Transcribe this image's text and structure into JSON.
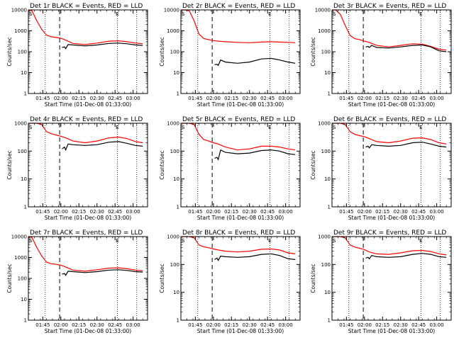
{
  "chart_data": [
    {
      "type": "line",
      "title": "Det 1r BLACK = Events, RED = LLD",
      "xlabel": "Start Time (01-Dec-08 01:33:00)",
      "ylabel": "Counts/sec",
      "yscale": "log",
      "ylim": [
        1,
        10000
      ],
      "xlim": [
        "01:33",
        "03:12"
      ],
      "xticks": [
        "01:45",
        "02:00",
        "02:15",
        "02:30",
        "02:45",
        "03:00"
      ],
      "yticks": [
        "1",
        "10",
        "100",
        "1000",
        "10000"
      ],
      "markers": {
        "S_at": "01:33",
        "E_at": "02:45",
        "dotted_lines": [
          "01:47",
          "02:47",
          "03:03"
        ],
        "dashed_line": "01:59"
      },
      "series": [
        {
          "color": "#ff0000",
          "x": [
            "01:33",
            "01:36",
            "01:40",
            "01:44",
            "01:48",
            "01:52",
            "01:56",
            "02:00",
            "02:04",
            "02:10",
            "02:20",
            "02:30",
            "02:40",
            "02:48",
            "02:55",
            "03:02",
            "03:08"
          ],
          "values": [
            10000,
            9000,
            3000,
            1200,
            620,
            520,
            480,
            440,
            360,
            250,
            220,
            260,
            320,
            330,
            300,
            260,
            240
          ]
        },
        {
          "color": "#000000",
          "x": [
            "02:01",
            "02:03",
            "02:04",
            "02:06",
            "02:10",
            "02:20",
            "02:30",
            "02:40",
            "02:48",
            "02:55",
            "03:02",
            "03:08"
          ],
          "values": [
            160,
            170,
            140,
            220,
            210,
            190,
            210,
            250,
            260,
            240,
            210,
            200
          ]
        }
      ]
    },
    {
      "type": "line",
      "title": "Det 2r BLACK = Events, RED = LLD",
      "xlabel": "Start Time (01-Dec-08 01:33:00)",
      "ylabel": "Counts/sec",
      "yscale": "log",
      "ylim": [
        1,
        10000
      ],
      "xlim": [
        "01:33",
        "03:12"
      ],
      "xticks": [
        "01:45",
        "02:00",
        "02:15",
        "02:30",
        "02:45",
        "03:00"
      ],
      "yticks": [
        "1",
        "10",
        "100",
        "1000",
        "10000"
      ],
      "markers": {
        "S_at": "01:33",
        "E_at": "02:45",
        "dotted_lines": [
          "01:47",
          "02:47",
          "03:03"
        ],
        "dashed_line": "01:59"
      },
      "series": [
        {
          "color": "#ff0000",
          "x": [
            "01:33",
            "01:36",
            "01:40",
            "01:44",
            "01:48",
            "01:52",
            "01:56",
            "02:00",
            "02:04",
            "02:10",
            "02:20",
            "02:30",
            "02:40",
            "02:48",
            "02:55",
            "03:02",
            "03:08"
          ],
          "values": [
            10000,
            10000,
            9000,
            3000,
            700,
            430,
            380,
            340,
            320,
            300,
            280,
            270,
            290,
            300,
            290,
            280,
            270
          ]
        },
        {
          "color": "#000000",
          "x": [
            "02:01",
            "02:03",
            "02:04",
            "02:06",
            "02:10",
            "02:20",
            "02:30",
            "02:40",
            "02:48",
            "02:55",
            "03:02",
            "03:08"
          ],
          "values": [
            24,
            25,
            22,
            40,
            32,
            28,
            32,
            45,
            48,
            40,
            32,
            28
          ]
        }
      ]
    },
    {
      "type": "line",
      "title": "Det 3r BLACK = Events, RED = LLD",
      "xlabel": "Start Time (01-Dec-08 01:33:00)",
      "ylabel": "Counts/sec",
      "yscale": "log",
      "ylim": [
        1,
        10000
      ],
      "xlim": [
        "01:33",
        "03:12"
      ],
      "xticks": [
        "01:45",
        "02:00",
        "02:15",
        "02:30",
        "02:45",
        "03:00"
      ],
      "yticks": [
        "1",
        "10",
        "100",
        "1000",
        "10000"
      ],
      "markers": {
        "S_at": "01:33",
        "E_at": "02:45",
        "dotted_lines": [
          "01:47",
          "02:47",
          "03:03"
        ],
        "dashed_line": "01:59"
      },
      "series": [
        {
          "color": "#ff0000",
          "x": [
            "01:33",
            "01:36",
            "01:40",
            "01:44",
            "01:48",
            "01:52",
            "01:56",
            "02:00",
            "02:04",
            "02:10",
            "02:20",
            "02:30",
            "02:40",
            "02:48",
            "02:55",
            "03:02",
            "03:08"
          ],
          "values": [
            10000,
            10000,
            6000,
            1800,
            600,
            420,
            380,
            320,
            280,
            200,
            170,
            200,
            240,
            230,
            180,
            130,
            120
          ]
        },
        {
          "color": "#000000",
          "x": [
            "02:01",
            "02:03",
            "02:04",
            "02:06",
            "02:10",
            "02:20",
            "02:30",
            "02:40",
            "02:48",
            "02:55",
            "03:02",
            "03:08"
          ],
          "values": [
            170,
            180,
            160,
            200,
            160,
            150,
            170,
            200,
            210,
            170,
            110,
            100
          ]
        }
      ]
    },
    {
      "type": "line",
      "title": "Det 4r BLACK = Events, RED = LLD",
      "xlabel": "Start Time (01-Dec-08 01:33:00)",
      "ylabel": "Counts/sec",
      "yscale": "log",
      "ylim": [
        1,
        1000
      ],
      "xlim": [
        "01:33",
        "03:12"
      ],
      "xticks": [
        "01:45",
        "02:00",
        "02:15",
        "02:30",
        "02:45",
        "03:00"
      ],
      "yticks": [
        "1",
        "10",
        "100",
        "1000"
      ],
      "markers": {
        "S_at": "01:33",
        "E_at": "02:45",
        "dotted_lines": [
          "01:47",
          "02:47",
          "03:03"
        ],
        "dashed_line": "01:59"
      },
      "series": [
        {
          "color": "#ff0000",
          "x": [
            "01:33",
            "01:36",
            "01:40",
            "01:44",
            "01:48",
            "01:52",
            "01:56",
            "02:00",
            "02:04",
            "02:10",
            "02:20",
            "02:30",
            "02:40",
            "02:48",
            "02:55",
            "03:02",
            "03:08"
          ],
          "values": [
            1000,
            1000,
            1000,
            900,
            500,
            420,
            380,
            340,
            300,
            230,
            200,
            230,
            300,
            320,
            280,
            220,
            200
          ]
        },
        {
          "color": "#000000",
          "x": [
            "02:01",
            "02:03",
            "02:04",
            "02:06",
            "02:10",
            "02:20",
            "02:30",
            "02:40",
            "02:48",
            "02:55",
            "03:02",
            "03:08"
          ],
          "values": [
            120,
            140,
            110,
            180,
            170,
            160,
            170,
            210,
            220,
            190,
            160,
            150
          ]
        }
      ]
    },
    {
      "type": "line",
      "title": "Det 5r BLACK = Events, RED = LLD",
      "xlabel": "Start Time (01-Dec-08 01:33:00)",
      "ylabel": "Counts/sec",
      "yscale": "log",
      "ylim": [
        1,
        1000
      ],
      "xlim": [
        "01:33",
        "03:12"
      ],
      "xticks": [
        "01:45",
        "02:00",
        "02:15",
        "02:30",
        "02:45",
        "03:00"
      ],
      "yticks": [
        "1",
        "10",
        "100",
        "1000"
      ],
      "markers": {
        "S_at": "01:33",
        "E_at": "02:45",
        "dotted_lines": [
          "01:47",
          "02:47",
          "03:03"
        ],
        "dashed_line": "01:59"
      },
      "series": [
        {
          "color": "#ff0000",
          "x": [
            "01:33",
            "01:36",
            "01:40",
            "01:44",
            "01:48",
            "01:52",
            "01:56",
            "02:00",
            "02:04",
            "02:10",
            "02:20",
            "02:30",
            "02:40",
            "02:48",
            "02:55",
            "03:02",
            "03:08"
          ],
          "values": [
            1000,
            1000,
            1000,
            900,
            400,
            260,
            230,
            200,
            180,
            140,
            110,
            120,
            150,
            150,
            140,
            120,
            110
          ]
        },
        {
          "color": "#000000",
          "x": [
            "02:01",
            "02:03",
            "02:04",
            "02:06",
            "02:10",
            "02:20",
            "02:30",
            "02:40",
            "02:48",
            "02:55",
            "03:02",
            "03:08"
          ],
          "values": [
            55,
            60,
            50,
            110,
            90,
            80,
            85,
            105,
            110,
            100,
            80,
            75
          ]
        }
      ]
    },
    {
      "type": "line",
      "title": "Det 6r BLACK = Events, RED = LLD",
      "xlabel": "Start Time (01-Dec-08 01:33:00)",
      "ylabel": "Counts/sec",
      "yscale": "log",
      "ylim": [
        1,
        1000
      ],
      "xlim": [
        "01:33",
        "03:12"
      ],
      "xticks": [
        "01:45",
        "02:00",
        "02:15",
        "02:30",
        "02:45",
        "03:00"
      ],
      "yticks": [
        "1",
        "10",
        "100",
        "1000"
      ],
      "markers": {
        "S_at": "01:33",
        "E_at": "02:45",
        "dotted_lines": [
          "01:47",
          "02:47",
          "03:03"
        ],
        "dashed_line": "01:59"
      },
      "series": [
        {
          "color": "#ff0000",
          "x": [
            "01:33",
            "01:36",
            "01:40",
            "01:44",
            "01:48",
            "01:52",
            "01:56",
            "02:00",
            "02:04",
            "02:10",
            "02:20",
            "02:30",
            "02:40",
            "02:48",
            "02:55",
            "03:02",
            "03:08"
          ],
          "values": [
            1000,
            1000,
            1000,
            900,
            500,
            400,
            360,
            330,
            280,
            220,
            200,
            230,
            290,
            300,
            260,
            200,
            180
          ]
        },
        {
          "color": "#000000",
          "x": [
            "02:01",
            "02:03",
            "02:04",
            "02:06",
            "02:10",
            "02:20",
            "02:30",
            "02:40",
            "02:48",
            "02:55",
            "03:02",
            "03:08"
          ],
          "values": [
            140,
            150,
            130,
            170,
            160,
            150,
            160,
            200,
            210,
            180,
            150,
            140
          ]
        }
      ]
    },
    {
      "type": "line",
      "title": "Det 7r BLACK = Events, RED = LLD",
      "xlabel": "Start Time (01-Dec-08 01:33:00)",
      "ylabel": "Counts/sec",
      "yscale": "log",
      "ylim": [
        1,
        10000
      ],
      "xlim": [
        "01:33",
        "03:12"
      ],
      "xticks": [
        "01:45",
        "02:00",
        "02:15",
        "02:30",
        "02:45",
        "03:00"
      ],
      "yticks": [
        "1",
        "10",
        "100",
        "1000",
        "10000"
      ],
      "markers": {
        "S_at": "01:33",
        "E_at": "02:45",
        "dotted_lines": [
          "01:47",
          "02:47",
          "03:03"
        ],
        "dashed_line": "01:59"
      },
      "series": [
        {
          "color": "#ff0000",
          "x": [
            "01:33",
            "01:36",
            "01:40",
            "01:44",
            "01:48",
            "01:52",
            "01:56",
            "02:00",
            "02:04",
            "02:10",
            "02:20",
            "02:30",
            "02:40",
            "02:48",
            "02:55",
            "03:02",
            "03:08"
          ],
          "values": [
            10000,
            9000,
            3000,
            1200,
            600,
            500,
            470,
            430,
            350,
            250,
            220,
            260,
            310,
            320,
            290,
            250,
            230
          ]
        },
        {
          "color": "#000000",
          "x": [
            "02:01",
            "02:03",
            "02:04",
            "02:06",
            "02:10",
            "02:20",
            "02:30",
            "02:40",
            "02:48",
            "02:55",
            "03:02",
            "03:08"
          ],
          "values": [
            160,
            170,
            140,
            220,
            210,
            190,
            210,
            250,
            260,
            240,
            210,
            200
          ]
        }
      ]
    },
    {
      "type": "line",
      "title": "Det 8r BLACK = Events, RED = LLD",
      "xlabel": "Start Time (01-Dec-08 01:33:00)",
      "ylabel": "Counts/sec",
      "yscale": "log",
      "ylim": [
        1,
        1000
      ],
      "xlim": [
        "01:33",
        "03:12"
      ],
      "xticks": [
        "01:45",
        "02:00",
        "02:15",
        "02:30",
        "02:45",
        "03:00"
      ],
      "yticks": [
        "1",
        "10",
        "100",
        "1000"
      ],
      "markers": {
        "S_at": "01:33",
        "E_at": "02:45",
        "dotted_lines": [
          "01:47",
          "02:47",
          "03:03"
        ],
        "dashed_line": "01:59"
      },
      "series": [
        {
          "color": "#ff0000",
          "x": [
            "01:33",
            "01:36",
            "01:40",
            "01:44",
            "01:48",
            "01:52",
            "01:56",
            "02:00",
            "02:04",
            "02:10",
            "02:20",
            "02:30",
            "02:40",
            "02:48",
            "02:55",
            "03:02",
            "03:08"
          ],
          "values": [
            1000,
            1000,
            1000,
            900,
            500,
            430,
            400,
            360,
            330,
            300,
            280,
            300,
            350,
            360,
            330,
            260,
            240
          ]
        },
        {
          "color": "#000000",
          "x": [
            "02:01",
            "02:03",
            "02:04",
            "02:06",
            "02:10",
            "02:20",
            "02:30",
            "02:40",
            "02:48",
            "02:55",
            "03:02",
            "03:08"
          ],
          "values": [
            150,
            170,
            140,
            200,
            190,
            180,
            190,
            230,
            240,
            210,
            160,
            150
          ]
        }
      ]
    },
    {
      "type": "line",
      "title": "Det 9r BLACK = Events, RED = LLD",
      "xlabel": "Start Time (01-Dec-08 01:33:00)",
      "ylabel": "Counts/sec",
      "yscale": "log",
      "ylim": [
        1,
        1000
      ],
      "xlim": [
        "01:33",
        "03:12"
      ],
      "xticks": [
        "01:45",
        "02:00",
        "02:15",
        "02:30",
        "02:45",
        "03:00"
      ],
      "yticks": [
        "1",
        "10",
        "100",
        "1000"
      ],
      "markers": {
        "S_at": "01:33",
        "E_at": "02:45",
        "dotted_lines": [
          "01:47",
          "02:47",
          "03:03"
        ],
        "dashed_line": "01:59"
      },
      "series": [
        {
          "color": "#ff0000",
          "x": [
            "01:33",
            "01:36",
            "01:40",
            "01:44",
            "01:48",
            "01:52",
            "01:56",
            "02:00",
            "02:04",
            "02:10",
            "02:20",
            "02:30",
            "02:40",
            "02:48",
            "02:55",
            "03:02",
            "03:08"
          ],
          "values": [
            1000,
            1000,
            1000,
            900,
            500,
            420,
            380,
            340,
            280,
            240,
            230,
            260,
            310,
            320,
            290,
            240,
            220
          ]
        },
        {
          "color": "#000000",
          "x": [
            "02:01",
            "02:03",
            "02:04",
            "02:06",
            "02:10",
            "02:20",
            "02:30",
            "02:40",
            "02:48",
            "02:55",
            "03:02",
            "03:08"
          ],
          "values": [
            170,
            180,
            160,
            210,
            190,
            180,
            190,
            230,
            250,
            230,
            190,
            180
          ]
        }
      ]
    }
  ]
}
